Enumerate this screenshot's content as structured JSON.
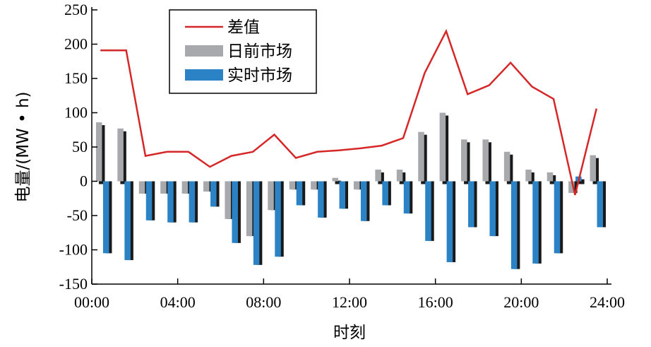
{
  "chart_data": {
    "type": "bar",
    "xlabel": "时刻",
    "ylabel": "电量/(MW • h)",
    "xlim": [
      0,
      24
    ],
    "ylim": [
      -150,
      250
    ],
    "xticks": [
      "00:00",
      "04:00",
      "08:00",
      "12:00",
      "16:00",
      "20:00",
      "24:00"
    ],
    "yticks": [
      250,
      200,
      150,
      100,
      50,
      0,
      -50,
      -100,
      -150
    ],
    "grid": false,
    "legend_position": "top-center",
    "x": [
      1,
      2,
      3,
      4,
      5,
      6,
      7,
      8,
      9,
      10,
      11,
      12,
      13,
      14,
      15,
      16,
      17,
      18,
      19,
      20,
      21,
      22,
      23,
      24
    ],
    "series": [
      {
        "name": "差值",
        "type": "line",
        "color": "#d62728",
        "values": [
          191,
          191,
          37,
          43,
          43,
          21,
          37,
          43,
          68,
          34,
          43,
          45,
          48,
          52,
          63,
          158,
          219,
          127,
          140,
          173,
          138,
          120,
          -20,
          106
        ]
      },
      {
        "name": "日前市场",
        "type": "bar",
        "color": "#a7a9ac",
        "values": [
          86,
          77,
          -18,
          -18,
          -18,
          -15,
          -55,
          -80,
          -42,
          -12,
          -12,
          5,
          -12,
          17,
          17,
          72,
          100,
          61,
          61,
          43,
          17,
          13,
          -17,
          38
        ]
      },
      {
        "name": "实时市场",
        "type": "bar",
        "color": "#2b83c6",
        "values": [
          -105,
          -115,
          -57,
          -60,
          -60,
          -37,
          -90,
          -122,
          -110,
          -35,
          -53,
          -40,
          -58,
          -35,
          -47,
          -87,
          -118,
          -67,
          -80,
          -128,
          -120,
          -105,
          7,
          -67
        ]
      }
    ]
  }
}
